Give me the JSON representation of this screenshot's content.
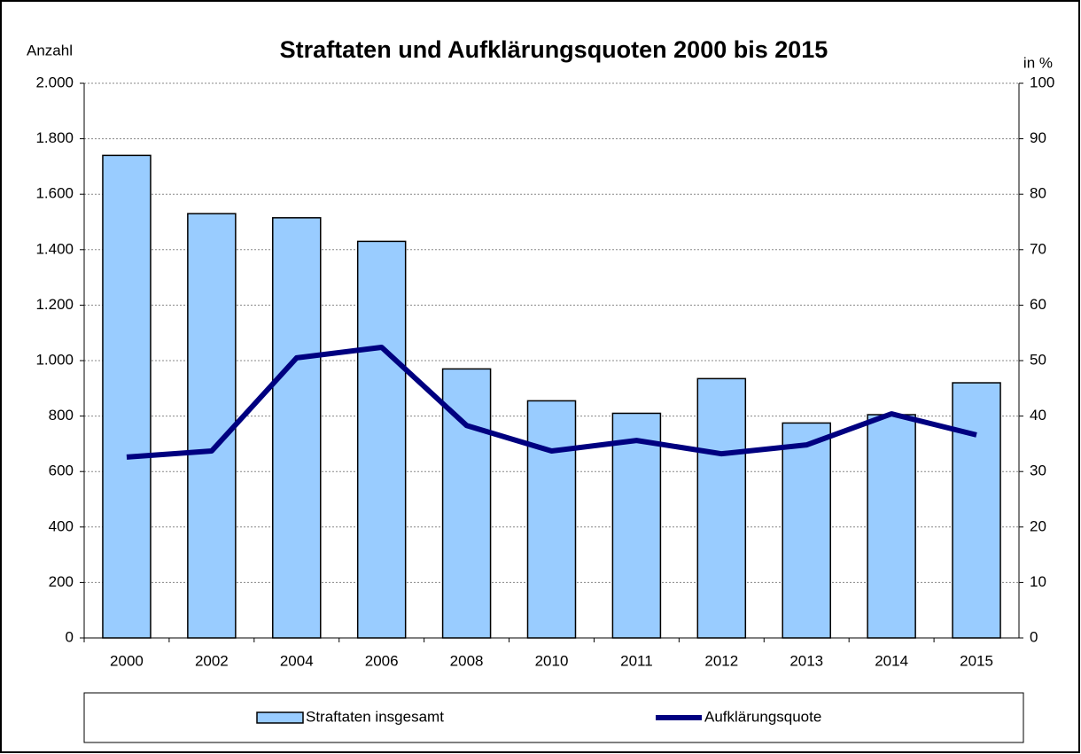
{
  "chart_data": {
    "type": "bar_line",
    "title": "Straftaten und Aufklärungsquoten 2000 bis 2015",
    "y_label": "Anzahl",
    "y2_label": "in %",
    "categories": [
      "2000",
      "2002",
      "2004",
      "2006",
      "2008",
      "2010",
      "2011",
      "2012",
      "2013",
      "2014",
      "2015"
    ],
    "series": [
      {
        "name": "Straftaten insgesamt",
        "type": "bar",
        "color": "#99ccff",
        "values": [
          1740,
          1530,
          1515,
          1430,
          970,
          855,
          810,
          935,
          775,
          805,
          920
        ]
      },
      {
        "name": "Aufklärungsquote",
        "type": "line",
        "axis": "y2",
        "color": "#000080",
        "values": [
          32.6,
          33.7,
          50.5,
          52.4,
          38.3,
          33.7,
          35.6,
          33.2,
          34.8,
          40.4,
          36.6
        ]
      }
    ],
    "ylim": [
      0,
      2000
    ],
    "yticks": [
      0,
      200,
      400,
      600,
      800,
      {
        "value": 1000,
        "label": "1.000"
      },
      {
        "value": 1200,
        "label": "1.200"
      },
      {
        "value": 1400,
        "label": "1.400"
      },
      {
        "value": 1600,
        "label": "1.600"
      },
      {
        "value": 1800,
        "label": "1.800"
      },
      {
        "value": 2000,
        "label": "2.000"
      }
    ],
    "y2lim": [
      0,
      100
    ],
    "y2ticks": [
      0,
      10,
      20,
      30,
      40,
      50,
      60,
      70,
      80,
      90,
      100
    ],
    "grid": true,
    "legend": "bottom"
  }
}
